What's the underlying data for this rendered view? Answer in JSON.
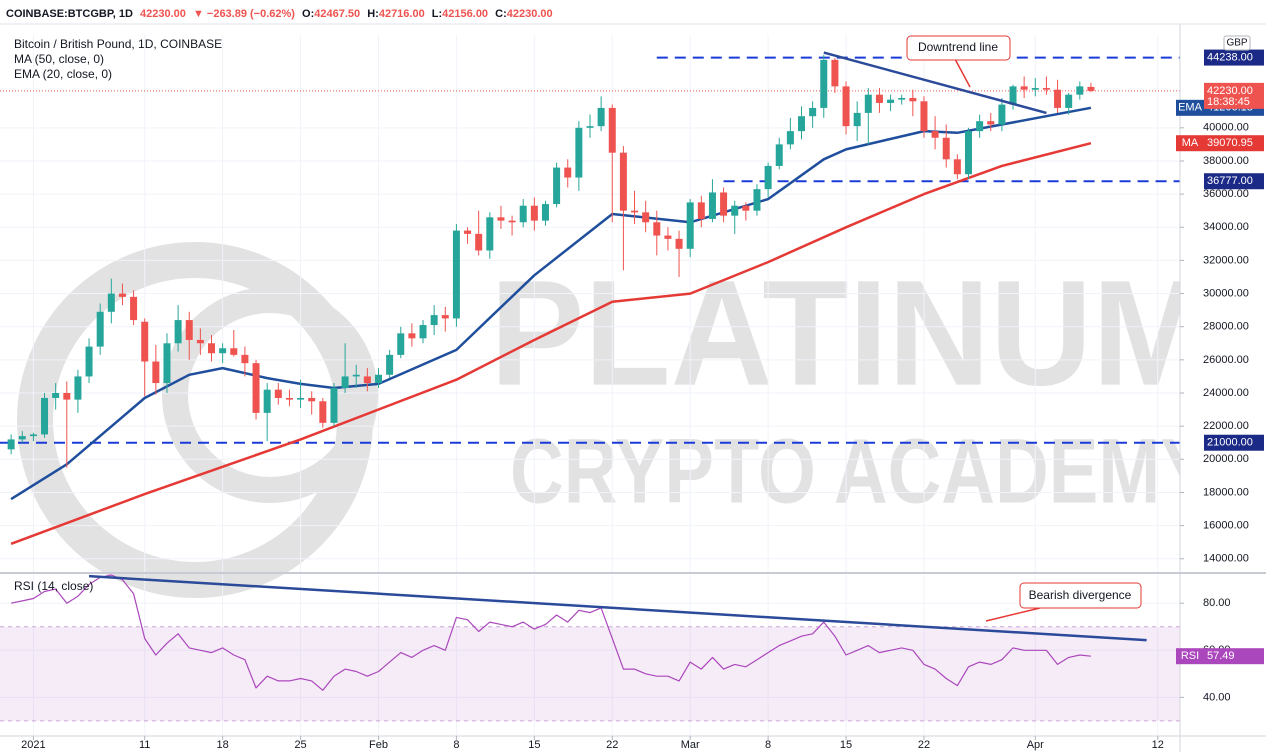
{
  "header": {
    "symbol": "COINBASE:BTCGBP, 1D",
    "price": "42230.00",
    "change": "▼ −263.89 (−0.62%)",
    "ohlc": [
      {
        "key": "O:",
        "value": "42467.50"
      },
      {
        "key": "H:",
        "value": "42716.00"
      },
      {
        "key": "L:",
        "value": "42156.00"
      },
      {
        "key": "C:",
        "value": "42230.00"
      }
    ]
  },
  "watermark": {
    "line1": "PLATINUM",
    "line2": "CRYPTO ACADEMY"
  },
  "chart_data": [
    {
      "type": "candlestick",
      "title": "Bitcoin / British Pound, 1D, COINBASE",
      "currency": "GBP",
      "up_color": "#26a69a",
      "down_color": "#ef5350",
      "xlim": [
        "2020-12-29",
        "2021-04-14"
      ],
      "ylim": [
        13200,
        45600
      ],
      "yticks": [
        {
          "value": 14000,
          "label": "14000.00"
        },
        {
          "value": 16000,
          "label": "16000.00"
        },
        {
          "value": 18000,
          "label": "18000.00"
        },
        {
          "value": 20000,
          "label": "20000.00"
        },
        {
          "value": 22000,
          "label": "22000.00"
        },
        {
          "value": 24000,
          "label": "24000.00"
        },
        {
          "value": 26000,
          "label": "26000.00"
        },
        {
          "value": 28000,
          "label": "28000.00"
        },
        {
          "value": 30000,
          "label": "30000.00"
        },
        {
          "value": 32000,
          "label": "32000.00"
        },
        {
          "value": 34000,
          "label": "34000.00"
        },
        {
          "value": 36000,
          "label": "36000.00"
        },
        {
          "value": 38000,
          "label": "38000.00"
        },
        {
          "value": 40000,
          "label": "40000.00"
        }
      ],
      "grid": true,
      "x": [
        "2020-12-30",
        "2020-12-31",
        "2021-01-01",
        "2021-01-02",
        "2021-01-03",
        "2021-01-04",
        "2021-01-05",
        "2021-01-06",
        "2021-01-07",
        "2021-01-08",
        "2021-01-09",
        "2021-01-10",
        "2021-01-11",
        "2021-01-12",
        "2021-01-13",
        "2021-01-14",
        "2021-01-15",
        "2021-01-16",
        "2021-01-17",
        "2021-01-18",
        "2021-01-19",
        "2021-01-20",
        "2021-01-21",
        "2021-01-22",
        "2021-01-23",
        "2021-01-24",
        "2021-01-25",
        "2021-01-26",
        "2021-01-27",
        "2021-01-28",
        "2021-01-29",
        "2021-01-30",
        "2021-01-31",
        "2021-02-01",
        "2021-02-02",
        "2021-02-03",
        "2021-02-04",
        "2021-02-05",
        "2021-02-06",
        "2021-02-07",
        "2021-02-08",
        "2021-02-09",
        "2021-02-10",
        "2021-02-11",
        "2021-02-12",
        "2021-02-13",
        "2021-02-14",
        "2021-02-15",
        "2021-02-16",
        "2021-02-17",
        "2021-02-18",
        "2021-02-19",
        "2021-02-20",
        "2021-02-21",
        "2021-02-22",
        "2021-02-23",
        "2021-02-24",
        "2021-02-25",
        "2021-02-26",
        "2021-02-27",
        "2021-02-28",
        "2021-03-01",
        "2021-03-02",
        "2021-03-03",
        "2021-03-04",
        "2021-03-05",
        "2021-03-06",
        "2021-03-07",
        "2021-03-08",
        "2021-03-09",
        "2021-03-10",
        "2021-03-11",
        "2021-03-12",
        "2021-03-13",
        "2021-03-14",
        "2021-03-15",
        "2021-03-16",
        "2021-03-17",
        "2021-03-18",
        "2021-03-19",
        "2021-03-20",
        "2021-03-21",
        "2021-03-22",
        "2021-03-23",
        "2021-03-24",
        "2021-03-25",
        "2021-03-26",
        "2021-03-27",
        "2021-03-28",
        "2021-03-29",
        "2021-03-30",
        "2021-03-31",
        "2021-04-01",
        "2021-04-02",
        "2021-04-03",
        "2021-04-04",
        "2021-04-05",
        "2021-04-06"
      ],
      "open": [
        20600,
        21200,
        21400,
        21500,
        23700,
        24000,
        23600,
        25000,
        26800,
        28900,
        30000,
        29800,
        28300,
        25900,
        24600,
        27000,
        28400,
        27200,
        27000,
        26400,
        26700,
        26300,
        25800,
        22800,
        24200,
        23700,
        23600,
        23700,
        23500,
        22200,
        24300,
        25000,
        25000,
        24600,
        25100,
        26300,
        27600,
        27300,
        28100,
        28700,
        28500,
        33800,
        33600,
        32600,
        34600,
        34400,
        34300,
        35300,
        34400,
        35400,
        37600,
        37000,
        40000,
        40100,
        41200,
        38500,
        35000,
        34900,
        34300,
        33500,
        33300,
        32700,
        35500,
        34500,
        36100,
        34700,
        35300,
        35000,
        36300,
        37700,
        39000,
        39800,
        40700,
        41200,
        44100,
        42500,
        40100,
        40900,
        42000,
        41500,
        41700,
        41800,
        41600,
        39800,
        39400,
        38100,
        37200,
        39800,
        40400,
        40200,
        41400,
        42500,
        42300,
        42400,
        42300,
        41200,
        42000,
        42467.5
      ],
      "high": [
        21500,
        21700,
        21600,
        24000,
        24600,
        24700,
        25400,
        27300,
        29400,
        30900,
        30600,
        30200,
        28500,
        26900,
        27600,
        29300,
        28900,
        27900,
        27500,
        27000,
        27800,
        26800,
        26000,
        24600,
        24600,
        24200,
        24800,
        24100,
        23700,
        24600,
        27000,
        25700,
        25500,
        25500,
        26600,
        28000,
        28200,
        28400,
        29300,
        29200,
        34200,
        34000,
        35000,
        34900,
        35300,
        34700,
        35700,
        35800,
        35600,
        37900,
        38100,
        40400,
        40800,
        41900,
        41400,
        38900,
        36200,
        35600,
        35000,
        34000,
        33800,
        35700,
        35900,
        36900,
        36400,
        35600,
        35500,
        36600,
        37900,
        39400,
        40600,
        41300,
        41600,
        44400,
        44200,
        42800,
        41600,
        42400,
        42400,
        42000,
        42000,
        42300,
        41900,
        40700,
        40200,
        38400,
        40000,
        40800,
        40900,
        41800,
        42600,
        43100,
        43000,
        43100,
        42900,
        42100,
        42800,
        42716
      ],
      "low": [
        20300,
        21000,
        21100,
        21300,
        23000,
        19500,
        22800,
        24600,
        26300,
        28200,
        29300,
        28100,
        23800,
        23900,
        24000,
        26500,
        26000,
        26300,
        25900,
        25800,
        26200,
        25000,
        22400,
        21100,
        23300,
        23200,
        23100,
        22700,
        21900,
        22000,
        24000,
        24300,
        24100,
        24300,
        24900,
        26100,
        26800,
        27000,
        27500,
        27700,
        28000,
        33000,
        32300,
        32100,
        33900,
        33500,
        34000,
        33800,
        34100,
        35200,
        36400,
        36200,
        39400,
        39800,
        34300,
        31400,
        34200,
        33700,
        32300,
        32600,
        31000,
        32200,
        34000,
        34300,
        34300,
        33600,
        34400,
        34700,
        35800,
        37500,
        38700,
        39300,
        40000,
        40600,
        42100,
        39600,
        39200,
        39000,
        40900,
        41000,
        41400,
        40700,
        39400,
        38700,
        37600,
        36900,
        36900,
        39400,
        39800,
        39800,
        41100,
        41800,
        41900,
        42000,
        40900,
        40800,
        41700,
        42156
      ],
      "close": [
        21200,
        21400,
        21500,
        23700,
        24000,
        23600,
        25000,
        26800,
        28900,
        30000,
        29800,
        28400,
        25900,
        24600,
        27000,
        28400,
        27200,
        27000,
        26400,
        26700,
        26300,
        25800,
        22800,
        24200,
        23700,
        23600,
        23700,
        23500,
        22200,
        24300,
        25000,
        25100,
        24600,
        25100,
        26300,
        27600,
        27300,
        28100,
        28700,
        28500,
        33800,
        33600,
        32600,
        34600,
        34400,
        34300,
        35300,
        34400,
        35400,
        37600,
        37000,
        40000,
        40100,
        41200,
        38500,
        35000,
        34900,
        34300,
        33500,
        33300,
        32700,
        35500,
        34500,
        36100,
        34700,
        35300,
        35000,
        36300,
        37700,
        39000,
        39800,
        40700,
        41200,
        44100,
        42500,
        40100,
        40900,
        42000,
        41500,
        41700,
        41800,
        41600,
        39800,
        39400,
        38100,
        37200,
        39800,
        40400,
        40200,
        41400,
        42500,
        42300,
        42400,
        42300,
        41200,
        42000,
        42500,
        42230
      ],
      "series": [
        {
          "name": "MA (50, close, 0)",
          "tag": "MA",
          "color": "#e53935",
          "x": [
            "2020-12-30",
            "2021-01-11",
            "2021-01-25",
            "2021-02-08",
            "2021-02-15",
            "2021-02-22",
            "2021-03-01",
            "2021-03-08",
            "2021-03-15",
            "2021-03-22",
            "2021-03-29",
            "2021-04-06"
          ],
          "values": [
            14900,
            17900,
            21200,
            24800,
            27200,
            29500,
            30000,
            31900,
            34000,
            36000,
            37700,
            39070.95
          ]
        },
        {
          "name": "EMA (20, close, 0)",
          "tag": "EMA",
          "color": "#1f4e9c",
          "x": [
            "2020-12-30",
            "2021-01-04",
            "2021-01-11",
            "2021-01-15",
            "2021-01-18",
            "2021-01-22",
            "2021-01-25",
            "2021-01-28",
            "2021-02-01",
            "2021-02-08",
            "2021-02-15",
            "2021-02-22",
            "2021-03-01",
            "2021-03-08",
            "2021-03-13",
            "2021-03-15",
            "2021-03-22",
            "2021-03-25",
            "2021-03-29",
            "2021-04-06"
          ],
          "values": [
            17600,
            19700,
            23700,
            25100,
            25500,
            24900,
            24550,
            24300,
            24550,
            26600,
            31100,
            34800,
            34300,
            35700,
            38100,
            38700,
            39800,
            39700,
            40200,
            41206.18
          ]
        }
      ],
      "levels": [
        {
          "value": 44238,
          "label": "44238.00",
          "start": "2021-02-26"
        },
        {
          "value": 36777,
          "label": "36777.00",
          "start": "2021-03-04"
        },
        {
          "value": 21000,
          "label": "21000.00",
          "start": "2020-12-29"
        }
      ],
      "level_color": "#1a3bd8",
      "trendline": [
        [
          "2021-03-13",
          44540
        ],
        [
          "2021-04-02",
          40900
        ]
      ],
      "trendline_color": "#2c4a9a",
      "price_badge": {
        "value": 42230,
        "label": "42230.00",
        "countdown": "18:38:45",
        "color": "#ef5350"
      },
      "annotations": [
        "Downtrend line"
      ]
    },
    {
      "type": "line",
      "xlim": [
        "2020-12-29",
        "2021-04-14"
      ],
      "ylim": [
        24,
        92
      ],
      "yticks": [
        {
          "value": 40,
          "label": "40.00"
        },
        {
          "value": 60,
          "label": "60.00"
        },
        {
          "value": 80,
          "label": "80.00"
        }
      ],
      "grid": true,
      "band": [
        30,
        70
      ],
      "xticks": [
        {
          "value": "2021-01-01",
          "label": "2021"
        },
        {
          "value": "2021-01-11",
          "label": "11"
        },
        {
          "value": "2021-01-18",
          "label": "18"
        },
        {
          "value": "2021-01-25",
          "label": "25"
        },
        {
          "value": "2021-02-01",
          "label": "Feb"
        },
        {
          "value": "2021-02-08",
          "label": "8"
        },
        {
          "value": "2021-02-15",
          "label": "15"
        },
        {
          "value": "2021-02-22",
          "label": "22"
        },
        {
          "value": "2021-03-01",
          "label": "Mar"
        },
        {
          "value": "2021-03-08",
          "label": "8"
        },
        {
          "value": "2021-03-15",
          "label": "15"
        },
        {
          "value": "2021-03-22",
          "label": "22"
        },
        {
          "value": "2021-04-01",
          "label": "Apr"
        },
        {
          "value": "2021-04-12",
          "label": "12"
        }
      ],
      "series": [
        {
          "name": "RSI (14, close)",
          "tag": "RSI",
          "color": "#ab47bc",
          "x": [
            "2020-12-30",
            "2020-12-31",
            "2021-01-01",
            "2021-01-02",
            "2021-01-03",
            "2021-01-04",
            "2021-01-05",
            "2021-01-06",
            "2021-01-07",
            "2021-01-08",
            "2021-01-09",
            "2021-01-10",
            "2021-01-11",
            "2021-01-12",
            "2021-01-13",
            "2021-01-14",
            "2021-01-15",
            "2021-01-16",
            "2021-01-17",
            "2021-01-18",
            "2021-01-19",
            "2021-01-20",
            "2021-01-21",
            "2021-01-22",
            "2021-01-23",
            "2021-01-24",
            "2021-01-25",
            "2021-01-26",
            "2021-01-27",
            "2021-01-28",
            "2021-01-29",
            "2021-01-30",
            "2021-01-31",
            "2021-02-01",
            "2021-02-02",
            "2021-02-03",
            "2021-02-04",
            "2021-02-05",
            "2021-02-06",
            "2021-02-07",
            "2021-02-08",
            "2021-02-09",
            "2021-02-10",
            "2021-02-11",
            "2021-02-12",
            "2021-02-13",
            "2021-02-14",
            "2021-02-15",
            "2021-02-16",
            "2021-02-17",
            "2021-02-18",
            "2021-02-19",
            "2021-02-20",
            "2021-02-21",
            "2021-02-22",
            "2021-02-23",
            "2021-02-24",
            "2021-02-25",
            "2021-02-26",
            "2021-02-27",
            "2021-02-28",
            "2021-03-01",
            "2021-03-02",
            "2021-03-03",
            "2021-03-04",
            "2021-03-05",
            "2021-03-06",
            "2021-03-07",
            "2021-03-08",
            "2021-03-09",
            "2021-03-10",
            "2021-03-11",
            "2021-03-12",
            "2021-03-13",
            "2021-03-14",
            "2021-03-15",
            "2021-03-16",
            "2021-03-17",
            "2021-03-18",
            "2021-03-19",
            "2021-03-20",
            "2021-03-21",
            "2021-03-22",
            "2021-03-23",
            "2021-03-24",
            "2021-03-25",
            "2021-03-26",
            "2021-03-27",
            "2021-03-28",
            "2021-03-29",
            "2021-03-30",
            "2021-03-31",
            "2021-04-01",
            "2021-04-02",
            "2021-04-03",
            "2021-04-04",
            "2021-04-05",
            "2021-04-06"
          ],
          "values": [
            80,
            81,
            82,
            85,
            86,
            80,
            83,
            88,
            91,
            92,
            90,
            84,
            65,
            58,
            63,
            67,
            61,
            60,
            59,
            61,
            58,
            56,
            44,
            49,
            47,
            47,
            48,
            47,
            43,
            49,
            52,
            51,
            49,
            51,
            55,
            59,
            57,
            60,
            62,
            60,
            74,
            73,
            68,
            72,
            71,
            70,
            72,
            69,
            71,
            75,
            72,
            77,
            76,
            78,
            65,
            52,
            52,
            50,
            49,
            49,
            47,
            55,
            52,
            57,
            52,
            54,
            53,
            56,
            59,
            62,
            64,
            66,
            67,
            72,
            66,
            58,
            60,
            62,
            59,
            60,
            61,
            60,
            54,
            52,
            48,
            45,
            53,
            55,
            54,
            56,
            61,
            60,
            60,
            60,
            54,
            57,
            58,
            57.49
          ]
        }
      ],
      "trendline": [
        [
          "2021-01-06",
          91.5
        ],
        [
          "2021-04-11",
          64.3
        ]
      ],
      "trendline_color": "#2c4a9a",
      "annotations": [
        "Bearish divergence"
      ]
    }
  ]
}
